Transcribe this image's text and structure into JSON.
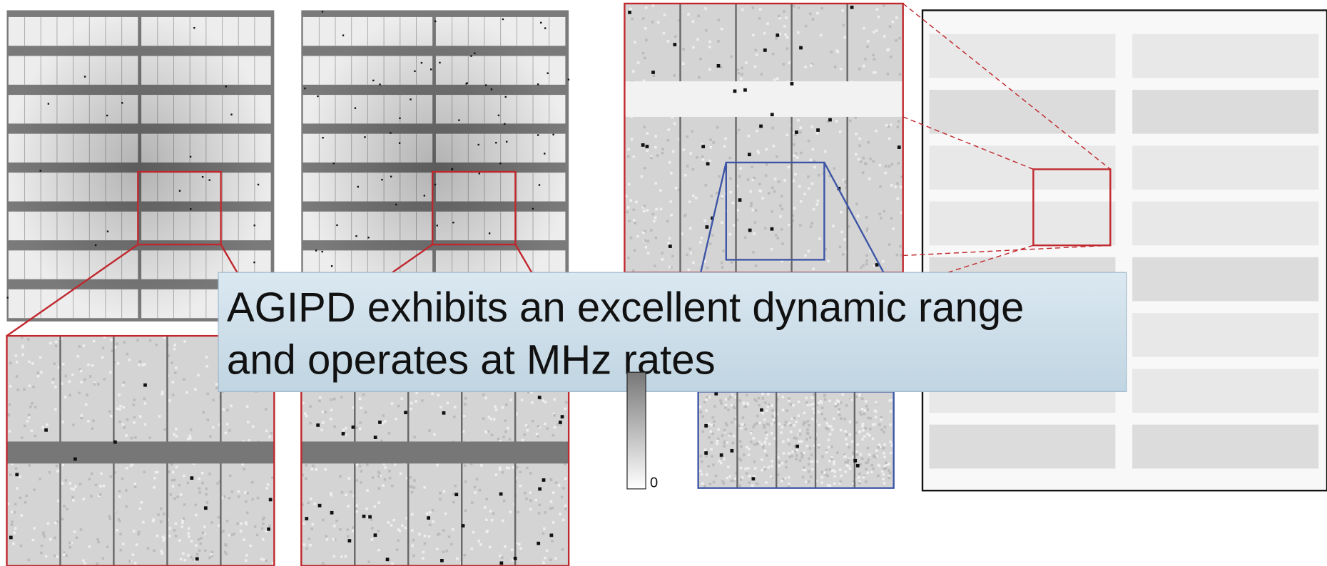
{
  "caption": {
    "lines": [
      "AGIPD exhibits an excellent dynamic range",
      "and operates at MHz rates"
    ]
  },
  "colorbar": {
    "label": "0"
  }
}
